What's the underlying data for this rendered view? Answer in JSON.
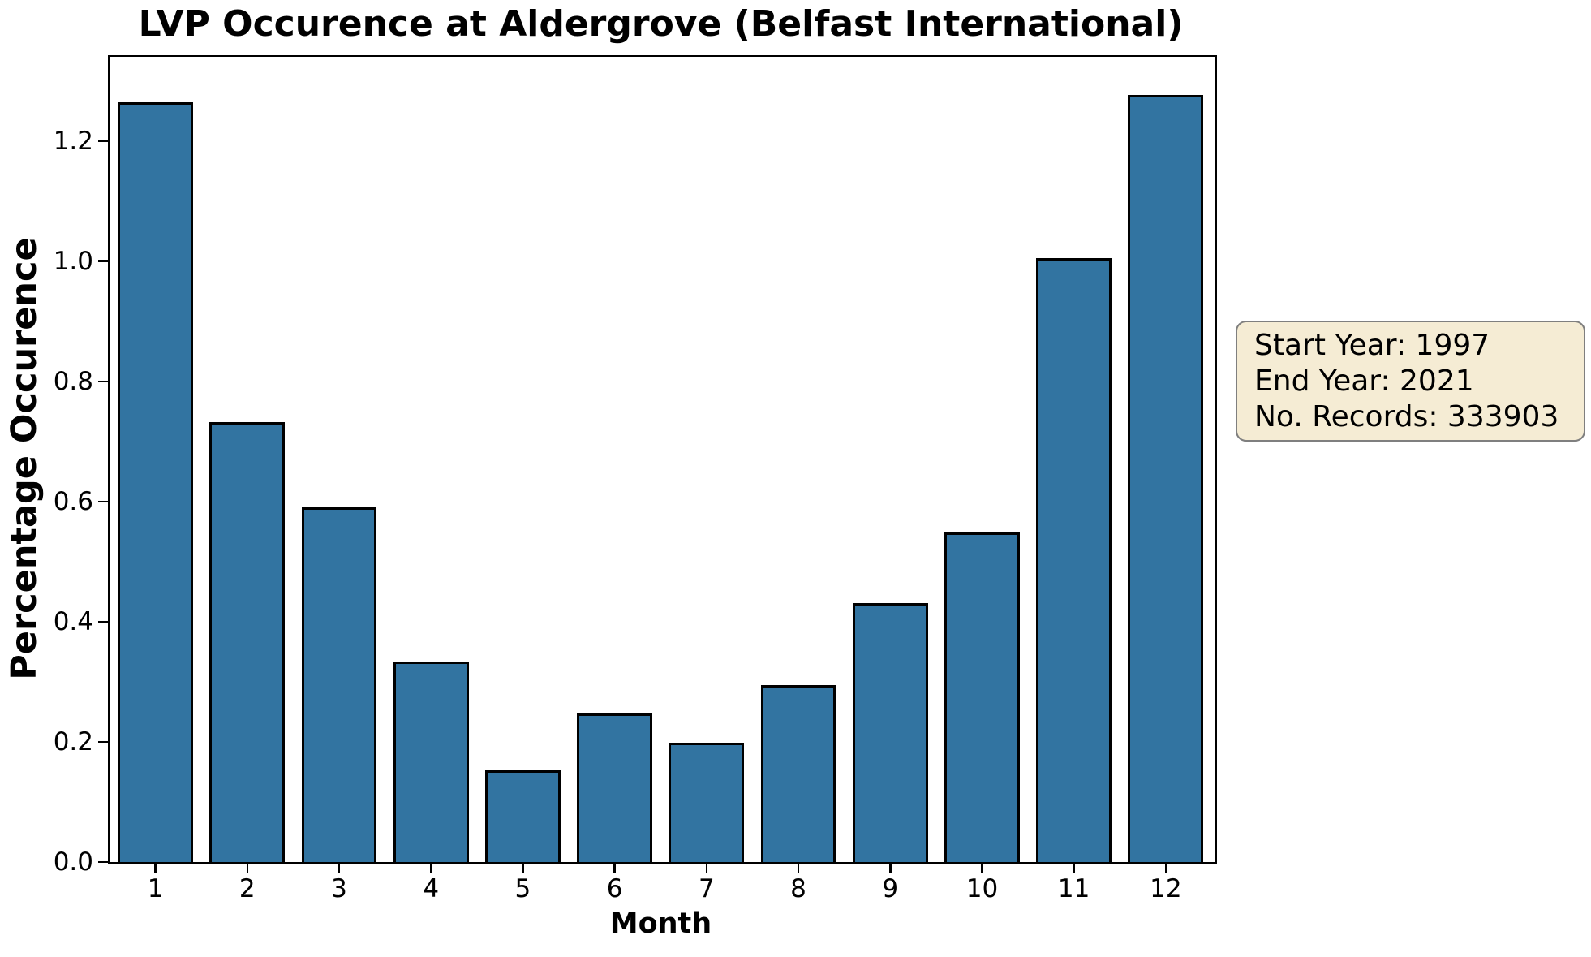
{
  "title": "LVP Occurence at Aldergrove (Belfast International)",
  "chart_data": {
    "type": "bar",
    "title": "LVP Occurence at Aldergrove (Belfast International)",
    "xlabel": "Month",
    "ylabel": "Percentage Occurence",
    "categories": [
      1,
      2,
      3,
      4,
      5,
      6,
      7,
      8,
      9,
      10,
      11,
      12
    ],
    "values": [
      1.265,
      0.732,
      0.59,
      0.334,
      0.152,
      0.247,
      0.198,
      0.295,
      0.431,
      0.549,
      1.005,
      1.277
    ],
    "xtick_labels": [
      "1",
      "2",
      "3",
      "4",
      "5",
      "6",
      "7",
      "8",
      "9",
      "10",
      "11",
      "12"
    ],
    "ytick_labels": [
      "0.0",
      "0.2",
      "0.4",
      "0.6",
      "0.8",
      "1.0",
      "1.2"
    ],
    "ylim": [
      0,
      1.34
    ],
    "xlim": [
      0.5,
      12.54
    ],
    "bar_width_units": 0.82,
    "grid": false,
    "legend_position": "none",
    "bar_color": "#3274a1",
    "bar_edge_color": "#000000"
  },
  "annotation_box": {
    "lines": [
      "Start Year: 1997",
      "End Year: 2021",
      "No. Records: 333903"
    ],
    "background": "#f5ecd4",
    "border_color": "#7f7f7f",
    "text_color": "#000000"
  }
}
